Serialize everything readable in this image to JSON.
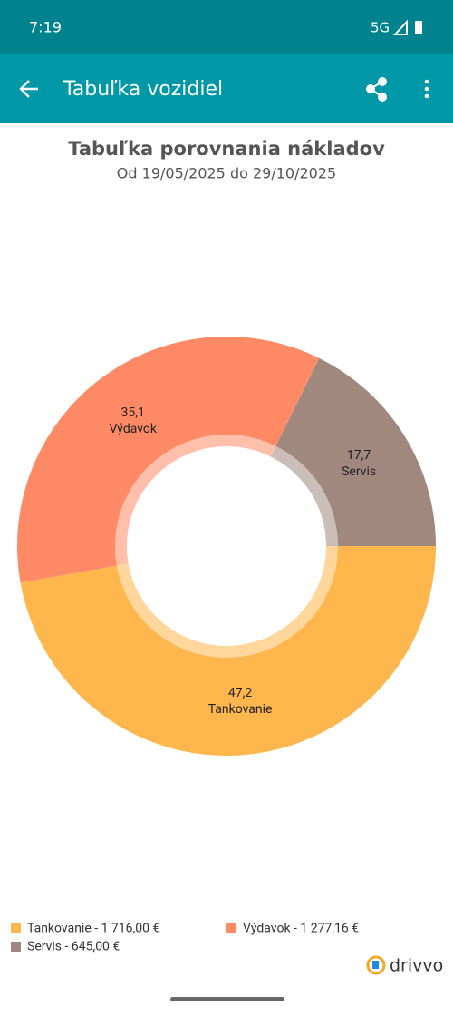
{
  "status_bar": {
    "time": "7:19",
    "network": "5G"
  },
  "app_bar": {
    "title": "Tabuľka vozidiel"
  },
  "chart_data": {
    "type": "pie",
    "title": "Tabuľka porovnania nákladov",
    "subtitle": "Od 19/05/2025 do 29/10/2025",
    "categories": [
      "Tankovanie",
      "Výdavok",
      "Servis"
    ],
    "values": [
      47.2,
      35.1,
      17.7
    ],
    "value_labels": [
      "47,2",
      "35,1",
      "17,7"
    ],
    "colors": [
      "#FFB74D",
      "#FF8A65",
      "#A1887F"
    ],
    "legend_entries": [
      "Tankovanie - 1 716,00 €",
      "Výdavok - 1 277,16 €",
      "Servis - 645,00 €"
    ]
  },
  "brand": "drivvo"
}
